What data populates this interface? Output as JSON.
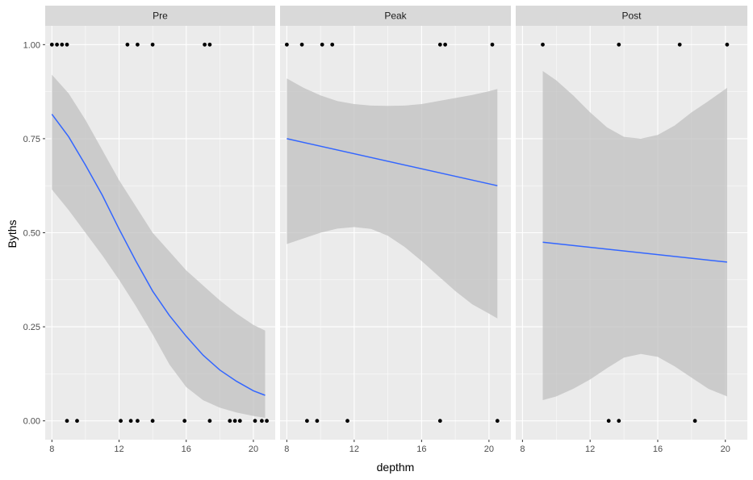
{
  "chart_data": {
    "type": "scatter",
    "facets": [
      "Pre",
      "Peak",
      "Post"
    ],
    "xlabel": "depthm",
    "ylabel": "Byths",
    "xlim": [
      7.6,
      21.3
    ],
    "ylim": [
      -0.05,
      1.05
    ],
    "x_ticks": [
      8,
      12,
      16,
      20
    ],
    "x_tick_labels": [
      "8",
      "12",
      "16",
      "20"
    ],
    "y_ticks": [
      0,
      0.25,
      0.5,
      0.75,
      1
    ],
    "y_tick_labels": [
      "0.00",
      "0.25",
      "0.50",
      "0.75",
      "1.00"
    ],
    "grid": true,
    "colors": {
      "panel_background": "#ebebeb",
      "strip_background": "#d9d9d9",
      "grid_major": "#ffffff",
      "points": "#000000",
      "fit_line": "#3366ff",
      "confidence_band": "#c0c0c0"
    },
    "panels": [
      {
        "name": "Pre",
        "points": [
          {
            "x": 8.0,
            "y": 1
          },
          {
            "x": 8.3,
            "y": 1
          },
          {
            "x": 8.6,
            "y": 1
          },
          {
            "x": 8.9,
            "y": 1
          },
          {
            "x": 12.5,
            "y": 1
          },
          {
            "x": 13.1,
            "y": 1
          },
          {
            "x": 14.0,
            "y": 1
          },
          {
            "x": 17.1,
            "y": 1
          },
          {
            "x": 17.4,
            "y": 1
          },
          {
            "x": 8.9,
            "y": 0
          },
          {
            "x": 9.5,
            "y": 0
          },
          {
            "x": 12.1,
            "y": 0
          },
          {
            "x": 12.7,
            "y": 0
          },
          {
            "x": 13.1,
            "y": 0
          },
          {
            "x": 14.0,
            "y": 0
          },
          {
            "x": 15.9,
            "y": 0
          },
          {
            "x": 17.4,
            "y": 0
          },
          {
            "x": 18.6,
            "y": 0
          },
          {
            "x": 18.9,
            "y": 0
          },
          {
            "x": 19.2,
            "y": 0
          },
          {
            "x": 20.1,
            "y": 0
          },
          {
            "x": 20.5,
            "y": 0
          },
          {
            "x": 20.8,
            "y": 0
          }
        ],
        "fit": {
          "x": [
            8,
            9,
            10,
            11,
            12,
            13,
            14,
            15,
            16,
            17,
            18,
            19,
            20,
            20.7
          ],
          "y": [
            0.815,
            0.755,
            0.68,
            0.6,
            0.51,
            0.425,
            0.345,
            0.28,
            0.225,
            0.175,
            0.135,
            0.105,
            0.08,
            0.068
          ]
        },
        "band_upper": [
          0.92,
          0.87,
          0.8,
          0.72,
          0.64,
          0.57,
          0.5,
          0.45,
          0.4,
          0.36,
          0.32,
          0.285,
          0.255,
          0.24
        ],
        "band_lower": [
          0.615,
          0.56,
          0.5,
          0.44,
          0.375,
          0.305,
          0.23,
          0.15,
          0.09,
          0.055,
          0.035,
          0.022,
          0.013,
          0.008
        ]
      },
      {
        "name": "Peak",
        "points": [
          {
            "x": 8.0,
            "y": 1
          },
          {
            "x": 8.9,
            "y": 1
          },
          {
            "x": 10.1,
            "y": 1
          },
          {
            "x": 10.7,
            "y": 1
          },
          {
            "x": 17.1,
            "y": 1
          },
          {
            "x": 17.4,
            "y": 1
          },
          {
            "x": 20.2,
            "y": 1
          },
          {
            "x": 9.2,
            "y": 0
          },
          {
            "x": 9.8,
            "y": 0
          },
          {
            "x": 11.6,
            "y": 0
          },
          {
            "x": 17.1,
            "y": 0
          },
          {
            "x": 20.5,
            "y": 0
          }
        ],
        "fit": {
          "x": [
            8,
            20.5
          ],
          "y": [
            0.75,
            0.625
          ]
        },
        "band_x": [
          8,
          9,
          10,
          11,
          12,
          13,
          14,
          15,
          16,
          17,
          18,
          19,
          20,
          20.5
        ],
        "band_upper": [
          0.91,
          0.885,
          0.865,
          0.85,
          0.842,
          0.838,
          0.837,
          0.838,
          0.842,
          0.85,
          0.858,
          0.866,
          0.876,
          0.882
        ],
        "band_lower": [
          0.47,
          0.485,
          0.5,
          0.511,
          0.515,
          0.51,
          0.492,
          0.462,
          0.425,
          0.385,
          0.345,
          0.31,
          0.285,
          0.272
        ]
      },
      {
        "name": "Post",
        "points": [
          {
            "x": 9.2,
            "y": 1
          },
          {
            "x": 13.7,
            "y": 1
          },
          {
            "x": 17.3,
            "y": 1
          },
          {
            "x": 20.1,
            "y": 1
          },
          {
            "x": 13.1,
            "y": 0
          },
          {
            "x": 13.7,
            "y": 0
          },
          {
            "x": 18.2,
            "y": 0
          }
        ],
        "fit": {
          "x": [
            9.2,
            20.1
          ],
          "y": [
            0.475,
            0.422
          ]
        },
        "band_x": [
          9.2,
          10,
          11,
          12,
          13,
          14,
          15,
          16,
          17,
          18,
          19,
          20.1
        ],
        "band_upper": [
          0.93,
          0.905,
          0.865,
          0.82,
          0.78,
          0.755,
          0.75,
          0.76,
          0.785,
          0.82,
          0.85,
          0.885
        ],
        "band_lower": [
          0.055,
          0.065,
          0.085,
          0.11,
          0.14,
          0.168,
          0.178,
          0.17,
          0.145,
          0.115,
          0.085,
          0.065
        ]
      }
    ]
  }
}
